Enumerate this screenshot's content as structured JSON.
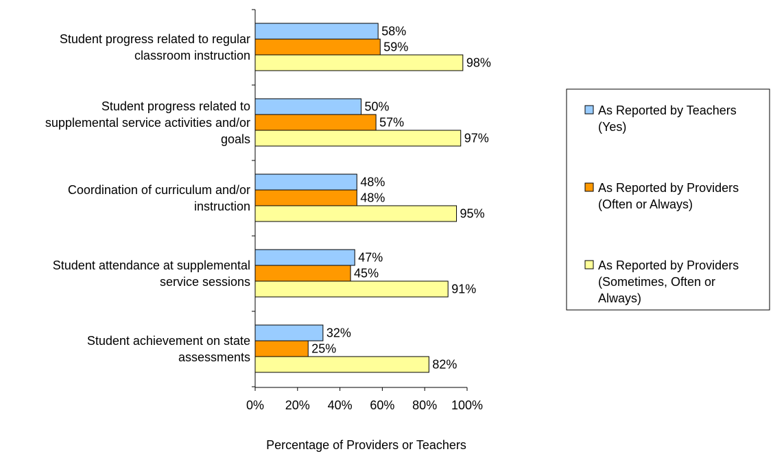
{
  "colors": {
    "teachers": "#99ccff",
    "providers_often": "#ff9900",
    "providers_sometimes": "#ffff99",
    "bar_stroke": "#000000",
    "axis": "#000000",
    "background": "#ffffff"
  },
  "chart_data": {
    "type": "bar",
    "orientation": "horizontal",
    "title": "",
    "xlabel": "Percentage of Providers or Teachers",
    "ylabel": "",
    "xlim": [
      0,
      100
    ],
    "x_ticks": [
      "0%",
      "20%",
      "40%",
      "60%",
      "80%",
      "100%"
    ],
    "grid": false,
    "legend_position": "right",
    "categories": [
      [
        "Student progress related to regular",
        "classroom instruction"
      ],
      [
        "Student progress related to",
        "supplemental service activities and/or",
        "goals"
      ],
      [
        "Coordination of curriculum and/or",
        "instruction"
      ],
      [
        "Student attendance at supplemental",
        "service sessions"
      ],
      [
        "Student achievement on state",
        "assessments"
      ]
    ],
    "series": [
      {
        "name": "As Reported by Teachers (Yes)",
        "legend_lines": [
          "As Reported by Teachers",
          "(Yes)"
        ],
        "color_key": "teachers",
        "values": [
          58,
          50,
          48,
          47,
          32
        ],
        "labels": [
          "58%",
          "50%",
          "48%",
          "47%",
          "32%"
        ]
      },
      {
        "name": "As Reported by Providers (Often or Always)",
        "legend_lines": [
          "As Reported by Providers",
          "(Often or Always)"
        ],
        "color_key": "providers_often",
        "values": [
          59,
          57,
          48,
          45,
          25
        ],
        "labels": [
          "59%",
          "57%",
          "48%",
          "45%",
          "25%"
        ]
      },
      {
        "name": "As Reported by Providers (Sometimes, Often or Always)",
        "legend_lines": [
          "As Reported by Providers",
          "(Sometimes, Often or",
          "Always)"
        ],
        "color_key": "providers_sometimes",
        "values": [
          98,
          97,
          95,
          91,
          82
        ],
        "labels": [
          "98%",
          "97%",
          "95%",
          "91%",
          "82%"
        ]
      }
    ]
  }
}
